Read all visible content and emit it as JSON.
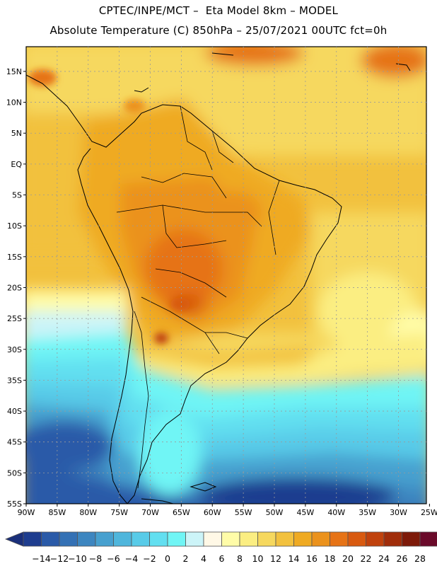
{
  "header": {
    "line1": "CPTEC/INPE/MCT –  Eta Model 8km – MODEL",
    "line2": "Absolute Temperature (C) 850hPa – 25/07/2021 00UTC fct=0h"
  },
  "map": {
    "lat_labels": [
      "15N",
      "10N",
      "5N",
      "EQ",
      "5S",
      "10S",
      "15S",
      "20S",
      "25S",
      "30S",
      "35S",
      "40S",
      "45S",
      "50S",
      "55S"
    ],
    "lon_labels": [
      "90W",
      "85W",
      "80W",
      "75W",
      "70W",
      "65W",
      "60W",
      "55W",
      "50W",
      "45W",
      "40W",
      "35W",
      "30W",
      "25W"
    ]
  },
  "colorbar": {
    "labels": [
      "-14",
      "-12",
      "-10",
      "-8",
      "-6",
      "-4",
      "-2",
      "0",
      "2",
      "4",
      "6",
      "8",
      "10",
      "12",
      "14",
      "16",
      "18",
      "20",
      "22",
      "24",
      "26",
      "28"
    ],
    "colors": [
      "#1e3d8f",
      "#2a5aa8",
      "#3471b5",
      "#3d86c0",
      "#47a0cf",
      "#4fb6dc",
      "#58cbe8",
      "#62dff0",
      "#70f5f5",
      "#ccf4f8",
      "#fff8e6",
      "#fffca8",
      "#fbee82",
      "#f6d85e",
      "#f2c13e",
      "#efaa22",
      "#eb921c",
      "#e67316",
      "#d85a10",
      "#c0420d",
      "#a02d0a",
      "#7d1a09",
      "#6a0a2a"
    ],
    "under_color": "#1a2f7a",
    "over_color": "#6a0a2a"
  }
}
